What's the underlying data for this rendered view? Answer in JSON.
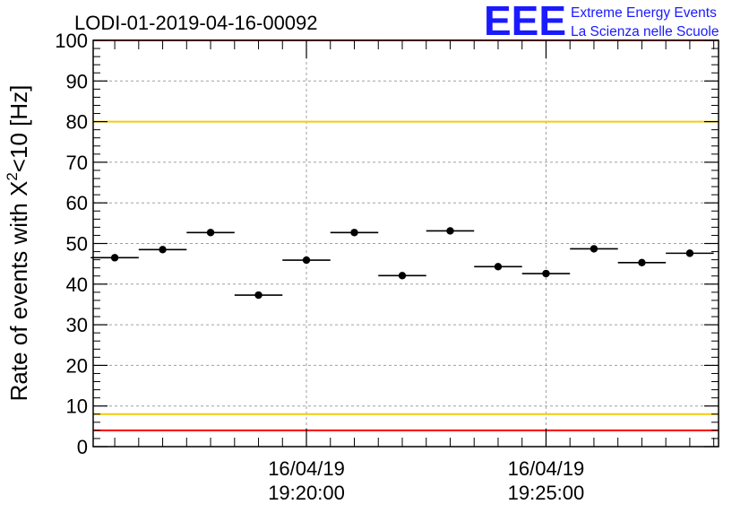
{
  "chart_data": {
    "type": "scatter",
    "title": "LODI-01-2019-04-16-00092",
    "ylabel": "Rate of events with X^2<10 [Hz]",
    "ylabel_parts": {
      "pre": "Rate of events with X",
      "sup": "2",
      "post": "<10 [Hz]"
    },
    "xlabel": "",
    "ylim": [
      0,
      100
    ],
    "y_ticks": [
      0,
      10,
      20,
      30,
      40,
      50,
      60,
      70,
      80,
      90,
      100
    ],
    "x_range_minutes": [
      -4.45,
      8.6
    ],
    "x_ticks": [
      {
        "pos": 0,
        "date": "16/04/19",
        "time": "19:20:00"
      },
      {
        "pos": 5,
        "date": "16/04/19",
        "time": "19:25:00"
      }
    ],
    "grid": true,
    "reference_lines": [
      {
        "value": 80,
        "color": "#f2cc0c"
      },
      {
        "value": 8,
        "color": "#f2cc0c"
      },
      {
        "value": 100,
        "color": "#ff0000"
      },
      {
        "value": 4,
        "color": "#ff0000"
      }
    ],
    "series": [
      {
        "bin_width_minutes": 1,
        "x_minutes": [
          -4,
          -3,
          -2,
          -1,
          0,
          1,
          2,
          3,
          4,
          5,
          6,
          7,
          8
        ],
        "values": [
          46.5,
          48.5,
          52.7,
          37.3,
          45.9,
          52.7,
          42.1,
          53.1,
          44.3,
          42.6,
          48.7,
          45.3,
          47.6
        ]
      }
    ]
  },
  "logo": {
    "big": "EEE",
    "line1": "Extreme Energy Events",
    "line2": "La Scienza nelle Scuole",
    "color": "#1a1aff"
  }
}
